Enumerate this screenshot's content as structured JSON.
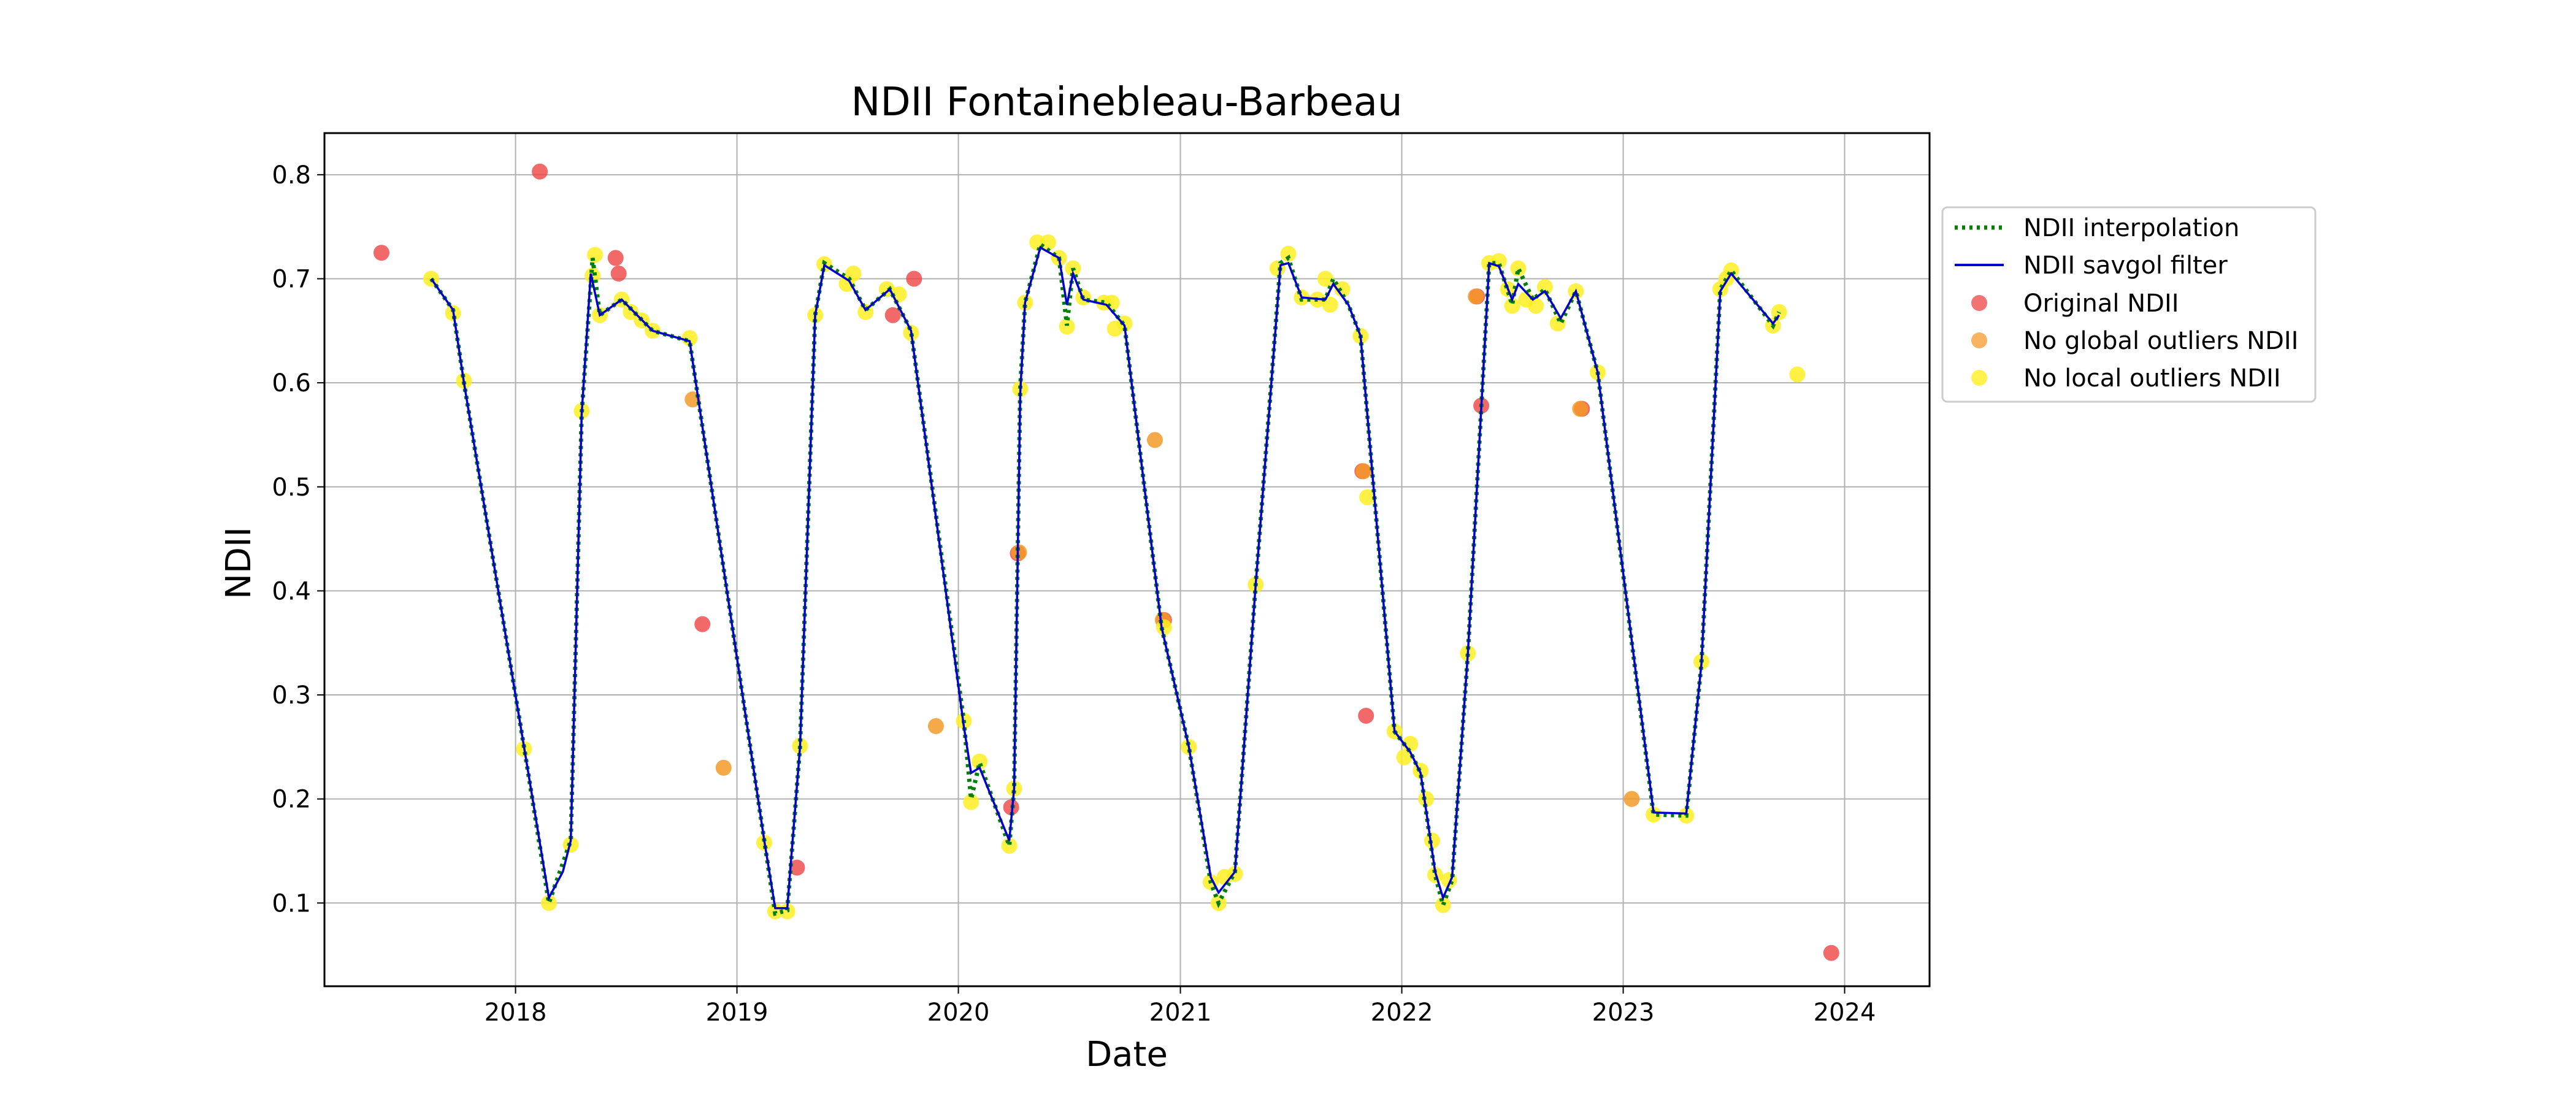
{
  "chart_data": {
    "type": "scatter",
    "title": "NDII Fontainebleau-Barbeau",
    "xlabel": "Date",
    "ylabel": "NDII",
    "xlim": [
      "2017-02-20",
      "2024-05-20"
    ],
    "ylim": [
      0.02,
      0.84
    ],
    "xticks": [
      "2018",
      "2019",
      "2020",
      "2021",
      "2022",
      "2023",
      "2024"
    ],
    "yticks": [
      "0.1",
      "0.2",
      "0.3",
      "0.4",
      "0.5",
      "0.6",
      "0.7",
      "0.8"
    ],
    "grid": true,
    "legend_position": "outside-right",
    "legend": [
      "NDII interpolation",
      "NDII savgol filter",
      "Original NDII",
      "No global outliers NDII",
      "No local outliers NDII"
    ],
    "colors": {
      "interpolation": "#008000",
      "savgol": "#0000cc",
      "original": "#ee4444",
      "global": "#f49a28",
      "local": "#ffee22"
    },
    "series": [
      {
        "name": "NDII interpolation",
        "kind": "line",
        "points": [
          [
            "2017-08-15",
            0.7
          ],
          [
            "2017-09-20",
            0.67
          ],
          [
            "2017-10-08",
            0.6
          ],
          [
            "2018-01-15",
            0.25
          ],
          [
            "2018-02-25",
            0.1
          ],
          [
            "2018-04-02",
            0.16
          ],
          [
            "2018-04-20",
            0.57
          ],
          [
            "2018-05-08",
            0.72
          ],
          [
            "2018-05-20",
            0.665
          ],
          [
            "2018-06-25",
            0.68
          ],
          [
            "2018-08-15",
            0.65
          ],
          [
            "2018-10-15",
            0.64
          ],
          [
            "2019-02-15",
            0.16
          ],
          [
            "2019-03-05",
            0.09
          ],
          [
            "2019-03-25",
            0.093
          ],
          [
            "2019-04-15",
            0.25
          ],
          [
            "2019-05-10",
            0.665
          ],
          [
            "2019-05-25",
            0.715
          ],
          [
            "2019-07-05",
            0.7
          ],
          [
            "2019-08-01",
            0.67
          ],
          [
            "2019-09-10",
            0.69
          ],
          [
            "2019-10-15",
            0.65
          ],
          [
            "2020-01-10",
            0.275
          ],
          [
            "2020-01-22",
            0.2
          ],
          [
            "2020-02-05",
            0.235
          ],
          [
            "2020-03-25",
            0.155
          ],
          [
            "2020-04-02",
            0.21
          ],
          [
            "2020-04-12",
            0.595
          ],
          [
            "2020-04-20",
            0.677
          ],
          [
            "2020-05-15",
            0.733
          ],
          [
            "2020-06-15",
            0.72
          ],
          [
            "2020-06-28",
            0.655
          ],
          [
            "2020-07-08",
            0.71
          ],
          [
            "2020-07-25",
            0.68
          ],
          [
            "2020-09-01",
            0.677
          ],
          [
            "2020-10-01",
            0.655
          ],
          [
            "2020-12-01",
            0.365
          ],
          [
            "2021-01-15",
            0.25
          ],
          [
            "2021-02-20",
            0.12
          ],
          [
            "2021-03-05",
            0.1
          ],
          [
            "2021-04-01",
            0.13
          ],
          [
            "2021-05-05",
            0.405
          ],
          [
            "2021-06-15",
            0.715
          ],
          [
            "2021-06-28",
            0.72
          ],
          [
            "2021-07-20",
            0.68
          ],
          [
            "2021-08-28",
            0.68
          ],
          [
            "2021-09-10",
            0.7
          ],
          [
            "2021-10-05",
            0.675
          ],
          [
            "2021-10-25",
            0.645
          ],
          [
            "2021-12-20",
            0.265
          ],
          [
            "2022-01-15",
            0.245
          ],
          [
            "2022-02-01",
            0.225
          ],
          [
            "2022-02-25",
            0.127
          ],
          [
            "2022-03-10",
            0.098
          ],
          [
            "2022-03-25",
            0.122
          ],
          [
            "2022-04-20",
            0.34
          ],
          [
            "2022-05-25",
            0.715
          ],
          [
            "2022-06-10",
            0.715
          ],
          [
            "2022-07-02",
            0.675
          ],
          [
            "2022-07-12",
            0.71
          ],
          [
            "2022-08-05",
            0.68
          ],
          [
            "2022-08-25",
            0.69
          ],
          [
            "2022-09-20",
            0.657
          ],
          [
            "2022-10-15",
            0.688
          ],
          [
            "2022-11-20",
            0.61
          ],
          [
            "2023-02-20",
            0.185
          ],
          [
            "2023-04-15",
            0.184
          ],
          [
            "2023-05-10",
            0.33
          ],
          [
            "2023-06-10",
            0.69
          ],
          [
            "2023-06-28",
            0.708
          ],
          [
            "2023-09-05",
            0.655
          ],
          [
            "2023-09-15",
            0.668
          ]
        ]
      },
      {
        "name": "NDII savgol filter",
        "kind": "line",
        "points": [
          [
            "2017-08-15",
            0.7
          ],
          [
            "2017-09-20",
            0.67
          ],
          [
            "2017-10-08",
            0.6
          ],
          [
            "2018-01-15",
            0.25
          ],
          [
            "2018-02-25",
            0.105
          ],
          [
            "2018-03-20",
            0.13
          ],
          [
            "2018-04-02",
            0.16
          ],
          [
            "2018-04-20",
            0.57
          ],
          [
            "2018-05-05",
            0.705
          ],
          [
            "2018-05-20",
            0.665
          ],
          [
            "2018-06-25",
            0.68
          ],
          [
            "2018-08-15",
            0.65
          ],
          [
            "2018-10-15",
            0.64
          ],
          [
            "2019-02-15",
            0.16
          ],
          [
            "2019-03-05",
            0.095
          ],
          [
            "2019-03-25",
            0.095
          ],
          [
            "2019-04-15",
            0.25
          ],
          [
            "2019-05-10",
            0.665
          ],
          [
            "2019-05-25",
            0.713
          ],
          [
            "2019-07-05",
            0.698
          ],
          [
            "2019-08-01",
            0.67
          ],
          [
            "2019-09-10",
            0.69
          ],
          [
            "2019-10-15",
            0.65
          ],
          [
            "2020-01-10",
            0.27
          ],
          [
            "2020-01-22",
            0.225
          ],
          [
            "2020-02-05",
            0.23
          ],
          [
            "2020-03-25",
            0.16
          ],
          [
            "2020-04-02",
            0.21
          ],
          [
            "2020-04-12",
            0.59
          ],
          [
            "2020-04-20",
            0.677
          ],
          [
            "2020-05-15",
            0.73
          ],
          [
            "2020-06-15",
            0.72
          ],
          [
            "2020-06-28",
            0.675
          ],
          [
            "2020-07-08",
            0.705
          ],
          [
            "2020-07-25",
            0.68
          ],
          [
            "2020-09-01",
            0.675
          ],
          [
            "2020-10-01",
            0.655
          ],
          [
            "2020-12-01",
            0.365
          ],
          [
            "2021-01-15",
            0.25
          ],
          [
            "2021-02-20",
            0.125
          ],
          [
            "2021-03-05",
            0.11
          ],
          [
            "2021-04-01",
            0.13
          ],
          [
            "2021-05-05",
            0.405
          ],
          [
            "2021-06-15",
            0.713
          ],
          [
            "2021-06-28",
            0.715
          ],
          [
            "2021-07-20",
            0.682
          ],
          [
            "2021-08-28",
            0.68
          ],
          [
            "2021-09-10",
            0.695
          ],
          [
            "2021-10-05",
            0.675
          ],
          [
            "2021-10-25",
            0.645
          ],
          [
            "2021-12-20",
            0.265
          ],
          [
            "2022-01-15",
            0.245
          ],
          [
            "2022-02-01",
            0.225
          ],
          [
            "2022-02-25",
            0.13
          ],
          [
            "2022-03-10",
            0.105
          ],
          [
            "2022-03-25",
            0.125
          ],
          [
            "2022-04-20",
            0.34
          ],
          [
            "2022-05-25",
            0.715
          ],
          [
            "2022-06-10",
            0.712
          ],
          [
            "2022-07-02",
            0.68
          ],
          [
            "2022-07-12",
            0.695
          ],
          [
            "2022-08-05",
            0.68
          ],
          [
            "2022-08-25",
            0.688
          ],
          [
            "2022-09-20",
            0.662
          ],
          [
            "2022-10-15",
            0.688
          ],
          [
            "2022-11-20",
            0.61
          ],
          [
            "2023-02-20",
            0.187
          ],
          [
            "2023-04-15",
            0.186
          ],
          [
            "2023-05-10",
            0.33
          ],
          [
            "2023-06-10",
            0.688
          ],
          [
            "2023-06-28",
            0.705
          ],
          [
            "2023-09-05",
            0.657
          ],
          [
            "2023-09-15",
            0.665
          ]
        ]
      },
      {
        "name": "Original NDII",
        "kind": "scatter",
        "points": [
          [
            "2017-05-25",
            0.725
          ],
          [
            "2018-02-10",
            0.803
          ],
          [
            "2018-06-15",
            0.72
          ],
          [
            "2018-06-20",
            0.705
          ],
          [
            "2018-11-05",
            0.368
          ],
          [
            "2019-04-10",
            0.134
          ],
          [
            "2019-09-15",
            0.665
          ],
          [
            "2019-10-20",
            0.7
          ],
          [
            "2020-03-28",
            0.192
          ],
          [
            "2020-04-08",
            0.436
          ],
          [
            "2020-12-05",
            0.372
          ],
          [
            "2021-10-28",
            0.515
          ],
          [
            "2021-11-03",
            0.28
          ],
          [
            "2022-05-05",
            0.683
          ],
          [
            "2022-05-12",
            0.578
          ],
          [
            "2022-10-25",
            0.575
          ],
          [
            "2023-12-10",
            0.052
          ]
        ]
      },
      {
        "name": "No global outliers NDII",
        "kind": "scatter",
        "points": [
          [
            "2018-10-20",
            0.584
          ],
          [
            "2018-12-10",
            0.23
          ],
          [
            "2019-11-25",
            0.27
          ],
          [
            "2020-04-10",
            0.437
          ],
          [
            "2020-11-20",
            0.545
          ],
          [
            "2020-12-03",
            0.372
          ],
          [
            "2021-10-30",
            0.515
          ],
          [
            "2022-05-03",
            0.683
          ],
          [
            "2022-10-22",
            0.575
          ],
          [
            "2023-01-15",
            0.2
          ]
        ]
      },
      {
        "name": "No local outliers NDII",
        "kind": "scatter",
        "points": [
          [
            "2017-08-15",
            0.7
          ],
          [
            "2017-09-20",
            0.667
          ],
          [
            "2017-10-08",
            0.602
          ],
          [
            "2018-01-15",
            0.248
          ],
          [
            "2018-02-25",
            0.1
          ],
          [
            "2018-04-02",
            0.156
          ],
          [
            "2018-04-20",
            0.573
          ],
          [
            "2018-05-08",
            0.703
          ],
          [
            "2018-05-12",
            0.723
          ],
          [
            "2018-05-20",
            0.665
          ],
          [
            "2018-06-25",
            0.68
          ],
          [
            "2018-07-10",
            0.668
          ],
          [
            "2018-07-28",
            0.66
          ],
          [
            "2018-08-15",
            0.65
          ],
          [
            "2018-10-15",
            0.643
          ],
          [
            "2019-02-15",
            0.158
          ],
          [
            "2019-03-05",
            0.092
          ],
          [
            "2019-03-25",
            0.092
          ],
          [
            "2019-04-15",
            0.251
          ],
          [
            "2019-05-10",
            0.665
          ],
          [
            "2019-05-25",
            0.714
          ],
          [
            "2019-07-01",
            0.695
          ],
          [
            "2019-07-12",
            0.705
          ],
          [
            "2019-08-01",
            0.668
          ],
          [
            "2019-09-05",
            0.69
          ],
          [
            "2019-09-25",
            0.685
          ],
          [
            "2019-10-15",
            0.648
          ],
          [
            "2020-01-10",
            0.275
          ],
          [
            "2020-01-22",
            0.197
          ],
          [
            "2020-02-05",
            0.236
          ],
          [
            "2020-03-25",
            0.155
          ],
          [
            "2020-04-02",
            0.21
          ],
          [
            "2020-04-12",
            0.594
          ],
          [
            "2020-04-20",
            0.677
          ],
          [
            "2020-05-10",
            0.735
          ],
          [
            "2020-05-28",
            0.735
          ],
          [
            "2020-06-15",
            0.72
          ],
          [
            "2020-06-28",
            0.654
          ],
          [
            "2020-07-08",
            0.71
          ],
          [
            "2020-07-25",
            0.682
          ],
          [
            "2020-08-28",
            0.677
          ],
          [
            "2020-09-10",
            0.677
          ],
          [
            "2020-09-15",
            0.652
          ],
          [
            "2020-10-01",
            0.657
          ],
          [
            "2020-12-05",
            0.365
          ],
          [
            "2021-01-15",
            0.25
          ],
          [
            "2021-02-20",
            0.12
          ],
          [
            "2021-03-05",
            0.1
          ],
          [
            "2021-03-15",
            0.125
          ],
          [
            "2021-04-01",
            0.128
          ],
          [
            "2021-05-05",
            0.406
          ],
          [
            "2021-06-10",
            0.71
          ],
          [
            "2021-06-28",
            0.724
          ],
          [
            "2021-07-20",
            0.682
          ],
          [
            "2021-08-15",
            0.68
          ],
          [
            "2021-08-28",
            0.7
          ],
          [
            "2021-09-05",
            0.675
          ],
          [
            "2021-09-25",
            0.69
          ],
          [
            "2021-10-25",
            0.645
          ],
          [
            "2021-11-05",
            0.49
          ],
          [
            "2021-12-20",
            0.265
          ],
          [
            "2022-01-05",
            0.24
          ],
          [
            "2022-01-15",
            0.253
          ],
          [
            "2022-02-01",
            0.227
          ],
          [
            "2022-02-10",
            0.2
          ],
          [
            "2022-02-20",
            0.16
          ],
          [
            "2022-02-25",
            0.127
          ],
          [
            "2022-03-10",
            0.098
          ],
          [
            "2022-03-20",
            0.122
          ],
          [
            "2022-04-20",
            0.34
          ],
          [
            "2022-05-25",
            0.715
          ],
          [
            "2022-06-10",
            0.717
          ],
          [
            "2022-06-25",
            0.69
          ],
          [
            "2022-07-02",
            0.674
          ],
          [
            "2022-07-12",
            0.71
          ],
          [
            "2022-07-25",
            0.68
          ],
          [
            "2022-08-10",
            0.674
          ],
          [
            "2022-08-25",
            0.692
          ],
          [
            "2022-09-15",
            0.657
          ],
          [
            "2022-10-15",
            0.688
          ],
          [
            "2022-11-20",
            0.61
          ],
          [
            "2023-02-20",
            0.185
          ],
          [
            "2023-04-15",
            0.184
          ],
          [
            "2023-05-10",
            0.332
          ],
          [
            "2023-06-10",
            0.69
          ],
          [
            "2023-06-20",
            0.7
          ],
          [
            "2023-06-28",
            0.708
          ],
          [
            "2023-09-05",
            0.655
          ],
          [
            "2023-09-15",
            0.668
          ],
          [
            "2023-10-15",
            0.608
          ]
        ]
      }
    ]
  }
}
